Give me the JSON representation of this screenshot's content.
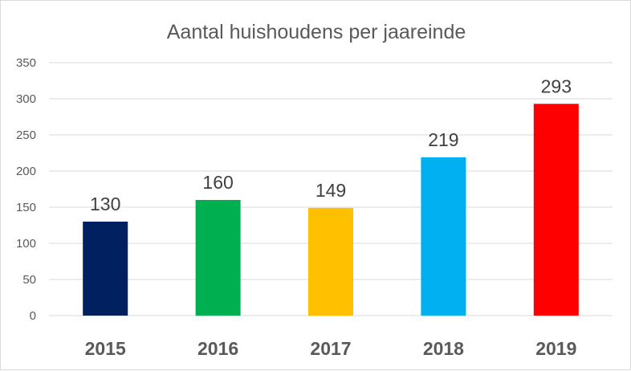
{
  "chart_data": {
    "type": "bar",
    "title": "Aantal huishoudens per jaareinde",
    "xlabel": "",
    "ylabel": "",
    "categories": [
      "2015",
      "2016",
      "2017",
      "2018",
      "2019"
    ],
    "values": [
      130,
      160,
      149,
      219,
      293
    ],
    "bar_colors": [
      "#002060",
      "#00b050",
      "#ffc000",
      "#00b0f0",
      "#ff0000"
    ],
    "ylim": [
      0,
      350
    ],
    "yticks": [
      0,
      50,
      100,
      150,
      200,
      250,
      300,
      350
    ],
    "data_labels": true,
    "grid": true,
    "legend": "none"
  }
}
